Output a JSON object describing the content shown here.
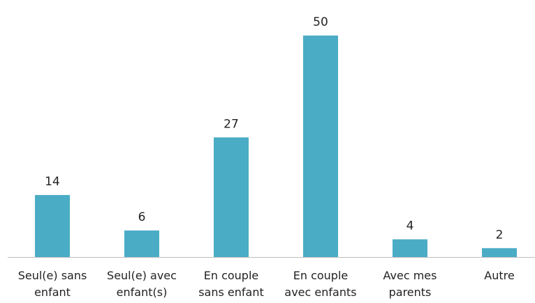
{
  "chart_data": {
    "type": "bar",
    "categories": [
      "Seul(e) sans enfant",
      "Seul(e) avec enfant(s)",
      "En couple sans enfant",
      "En couple avec enfants",
      "Avec mes parents",
      "Autre"
    ],
    "values": [
      14,
      6,
      27,
      50,
      4,
      2
    ],
    "color": "#4bacc6"
  }
}
